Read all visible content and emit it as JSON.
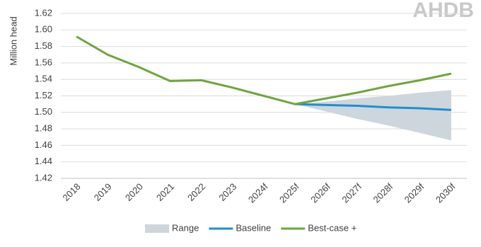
{
  "chart_data": {
    "type": "line",
    "y_label": "Million head",
    "watermark": "AHDB",
    "categories": [
      "2018",
      "2019",
      "2020",
      "2021",
      "2022",
      "2023",
      "2024f",
      "2025f",
      "2026f",
      "2027f",
      "2028f",
      "2029f",
      "2030f"
    ],
    "series": [
      {
        "name": "Range",
        "color": "#cdd6dc",
        "type": "range",
        "low": [
          null,
          null,
          null,
          null,
          null,
          null,
          null,
          1.51,
          1.501,
          1.492,
          1.484,
          1.475,
          1.466
        ],
        "high": [
          null,
          null,
          null,
          null,
          null,
          null,
          null,
          1.51,
          1.513,
          1.517,
          1.52,
          1.524,
          1.527
        ]
      },
      {
        "name": "Baseline",
        "color": "#1e8fd0",
        "values": [
          null,
          null,
          null,
          null,
          null,
          null,
          null,
          1.51,
          1.509,
          1.508,
          1.506,
          1.505,
          1.503
        ]
      },
      {
        "name": "Best-case +",
        "color": "#6ea63a",
        "values": [
          1.592,
          1.57,
          1.555,
          1.538,
          1.539,
          1.53,
          1.52,
          1.51,
          1.517,
          1.524,
          1.532,
          1.539,
          1.547
        ]
      }
    ],
    "ylim": [
      1.42,
      1.62
    ],
    "yticks": [
      {
        "value": 1.42,
        "label": "1.42"
      },
      {
        "value": 1.44,
        "label": "1.44"
      },
      {
        "value": 1.46,
        "label": "1.46"
      },
      {
        "value": 1.48,
        "label": "1.48"
      },
      {
        "value": 1.5,
        "label": "1.50"
      },
      {
        "value": 1.52,
        "label": "1.52"
      },
      {
        "value": 1.54,
        "label": "1.54"
      },
      {
        "value": 1.56,
        "label": "1.56"
      },
      {
        "value": 1.58,
        "label": "1.58"
      },
      {
        "value": 1.6,
        "label": "1.60"
      },
      {
        "value": 1.62,
        "label": "1.62"
      }
    ],
    "grid": true
  }
}
